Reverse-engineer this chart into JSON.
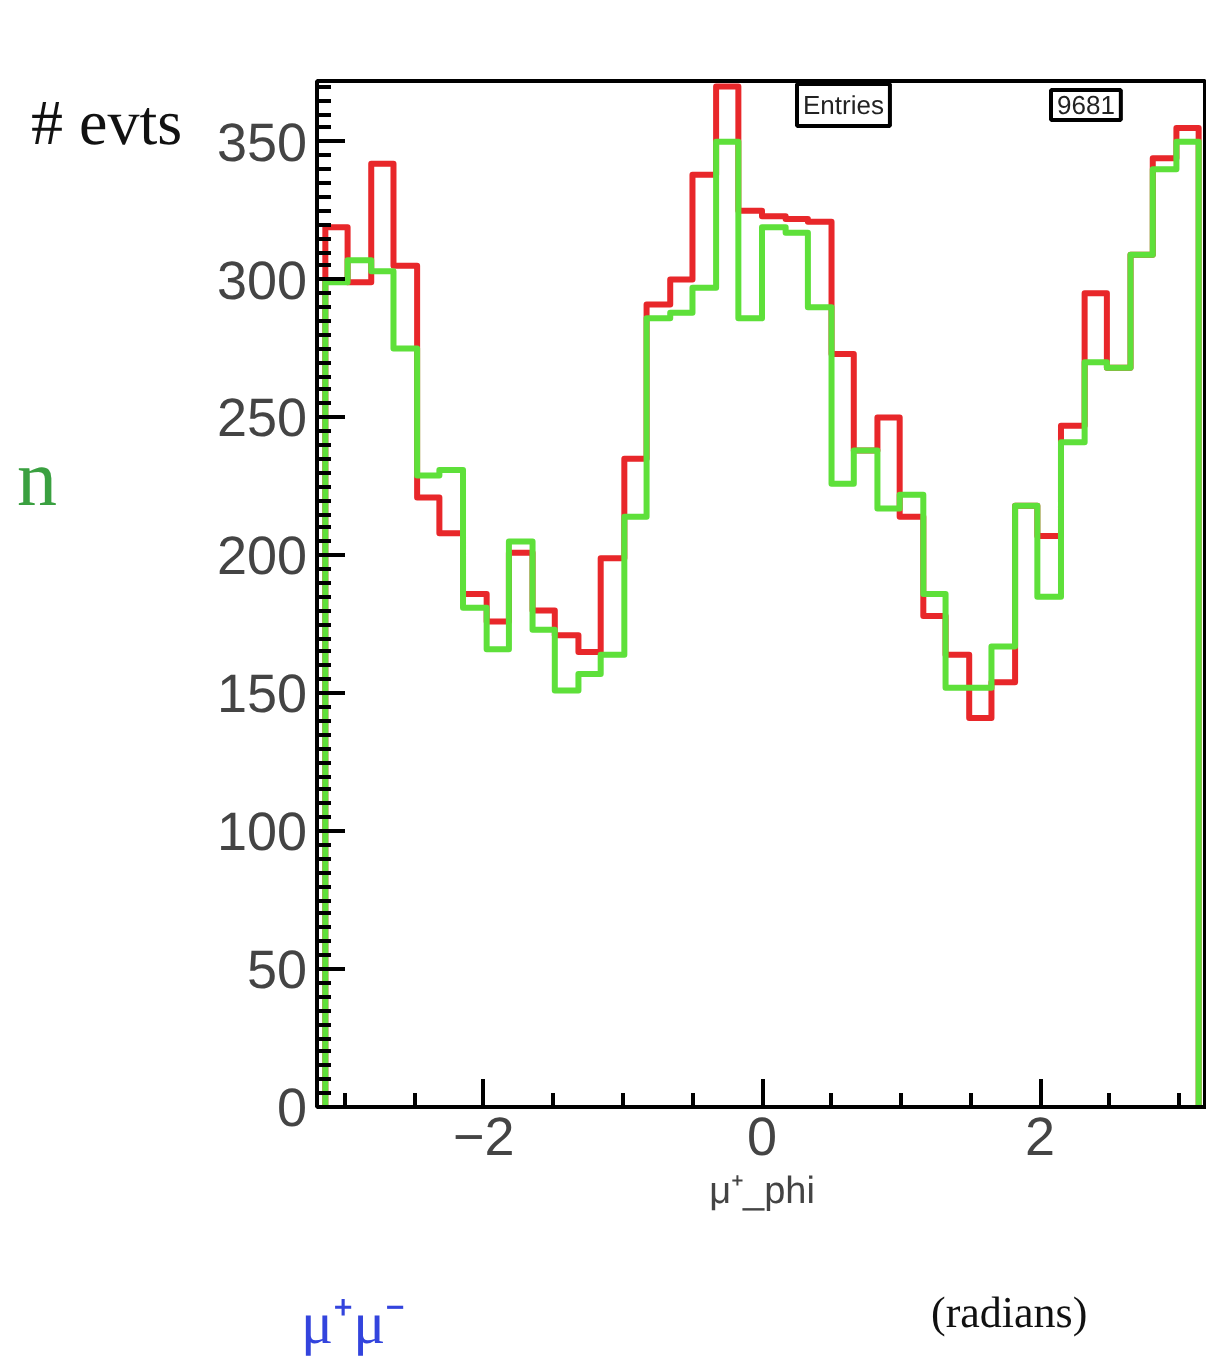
{
  "chart_data": {
    "type": "histogram",
    "ylabel": "# evts",
    "xlabel": "μ⁺_phi",
    "annotations": [
      "n",
      "μ⁺μ⁻",
      "(radians)",
      "Entries",
      "9681"
    ],
    "bins": [
      -3.14,
      -2.98,
      -2.81,
      -2.65,
      -2.48,
      -2.32,
      -2.15,
      -1.98,
      -1.82,
      -1.65,
      -1.49,
      -1.32,
      -1.16,
      -0.99,
      -0.83,
      -0.66,
      -0.5,
      -0.33,
      -0.17,
      0.0,
      0.17,
      0.33,
      0.5,
      0.66,
      0.83,
      0.99,
      1.16,
      1.32,
      1.49,
      1.65,
      1.82,
      1.98,
      2.15,
      2.32,
      2.48,
      2.65,
      2.81,
      2.98,
      3.14
    ],
    "series": [
      {
        "color": "#e8272a",
        "values": [
          319,
          299,
          342,
          305,
          221,
          208,
          186,
          176,
          201,
          180,
          171,
          165,
          199,
          235,
          291,
          300,
          338,
          370,
          325,
          323,
          322,
          321,
          273,
          238,
          250,
          214,
          178,
          164,
          141,
          154,
          218,
          207,
          247,
          295,
          268,
          309,
          344,
          355
        ]
      },
      {
        "color": "#5ee03a",
        "values": [
          299,
          307,
          303,
          275,
          229,
          231,
          181,
          166,
          205,
          173,
          151,
          157,
          164,
          214,
          286,
          288,
          297,
          350,
          286,
          319,
          317,
          290,
          226,
          238,
          217,
          222,
          186,
          152,
          152,
          167,
          218,
          185,
          241,
          270,
          268,
          309,
          340,
          350
        ]
      }
    ],
    "xlim": [
      -3.2,
      3.2
    ],
    "ylim": [
      0,
      372
    ],
    "xticks": [
      {
        "value": -2,
        "label": "−2"
      },
      0,
      2
    ],
    "yticks": [
      0,
      50,
      100,
      150,
      200,
      250,
      300,
      350
    ],
    "grid": false
  }
}
